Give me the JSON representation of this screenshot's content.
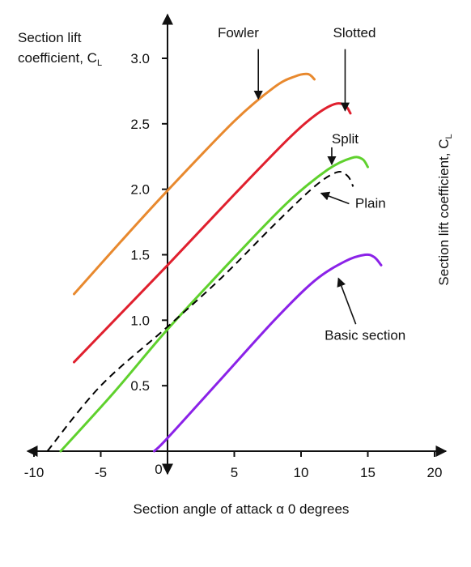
{
  "chart_data": {
    "type": "line",
    "xlabel": "Section angle of attack α 0 degrees",
    "ylabel_left": [
      "Section lift",
      "coefficient, C"
    ],
    "ylabel_left_sub": "L",
    "ylabel_right": "Section lift coefficient,  C",
    "ylabel_right_sub": "L",
    "origin_label": "0",
    "xlim": [
      -10,
      20
    ],
    "ylim": [
      0,
      3.3
    ],
    "x_ticks": [
      -10,
      -5,
      5,
      10,
      15,
      20
    ],
    "x_tick_labels": [
      "-10",
      "-5",
      "5",
      "10",
      "15",
      "20"
    ],
    "y_ticks": [
      0.5,
      1.0,
      1.5,
      2.0,
      2.5,
      3.0
    ],
    "y_tick_labels": [
      "0.5",
      "1.0",
      "1.5",
      "2.0",
      "2.5",
      "3.0"
    ],
    "grid": false,
    "series": [
      {
        "name": "Fowler",
        "color": "#e8892e",
        "dashed": false,
        "points": [
          [
            -7,
            1.2
          ],
          [
            -3.5,
            1.6
          ],
          [
            0,
            1.99
          ],
          [
            5,
            2.52
          ],
          [
            8,
            2.78
          ],
          [
            9.5,
            2.86
          ],
          [
            10.5,
            2.88
          ],
          [
            11,
            2.84
          ]
        ]
      },
      {
        "name": "Slotted",
        "color": "#e0202e",
        "dashed": false,
        "points": [
          [
            -7,
            0.68
          ],
          [
            -3.5,
            1.05
          ],
          [
            0,
            1.42
          ],
          [
            5,
            1.96
          ],
          [
            9,
            2.38
          ],
          [
            11,
            2.56
          ],
          [
            12.5,
            2.65
          ],
          [
            13.3,
            2.64
          ],
          [
            13.7,
            2.58
          ]
        ]
      },
      {
        "name": "Split",
        "color": "#5fd12d",
        "dashed": false,
        "points": [
          [
            -8,
            0
          ],
          [
            -4,
            0.45
          ],
          [
            0,
            0.93
          ],
          [
            5,
            1.48
          ],
          [
            9,
            1.9
          ],
          [
            12,
            2.15
          ],
          [
            13.8,
            2.24
          ],
          [
            14.6,
            2.23
          ],
          [
            15,
            2.17
          ]
        ]
      },
      {
        "name": "Plain",
        "color": "#000000",
        "dashed": true,
        "points": [
          [
            -9,
            0
          ],
          [
            -5,
            0.5
          ],
          [
            0,
            0.95
          ],
          [
            4,
            1.32
          ],
          [
            8,
            1.73
          ],
          [
            11,
            2.02
          ],
          [
            12.7,
            2.13
          ],
          [
            13.5,
            2.1
          ],
          [
            13.9,
            2.02
          ]
        ]
      },
      {
        "name": "Basic section",
        "color": "#8b22e8",
        "dashed": false,
        "points": [
          [
            -1,
            0
          ],
          [
            0,
            0.1
          ],
          [
            4,
            0.55
          ],
          [
            8,
            1.0
          ],
          [
            11,
            1.3
          ],
          [
            13.3,
            1.45
          ],
          [
            14.8,
            1.5
          ],
          [
            15.5,
            1.48
          ],
          [
            16,
            1.42
          ]
        ]
      }
    ],
    "annotations": [
      {
        "name": "Fowler",
        "text": "Fowler",
        "text_at": [
          5.3,
          3.16
        ],
        "arrow_from": [
          6.8,
          3.07
        ],
        "arrow_to": [
          6.8,
          2.69
        ]
      },
      {
        "name": "Slotted",
        "text": "Slotted",
        "text_at": [
          14.0,
          3.16
        ],
        "arrow_from": [
          13.3,
          3.07
        ],
        "arrow_to": [
          13.3,
          2.6
        ]
      },
      {
        "name": "Split",
        "text": "Split",
        "text_at": [
          13.3,
          2.35
        ],
        "arrow_from": [
          12.3,
          2.32
        ],
        "arrow_to": [
          12.3,
          2.19
        ]
      },
      {
        "name": "Plain",
        "text": "Plain",
        "text_at": [
          15.2,
          1.86
        ],
        "arrow_from": [
          13.6,
          1.89
        ],
        "arrow_to": [
          11.5,
          1.97
        ]
      },
      {
        "name": "Basic section",
        "text": "Basic section",
        "text_at": [
          14.8,
          0.85
        ],
        "arrow_from": [
          14.1,
          0.97
        ],
        "arrow_to": [
          12.8,
          1.32
        ]
      }
    ]
  }
}
